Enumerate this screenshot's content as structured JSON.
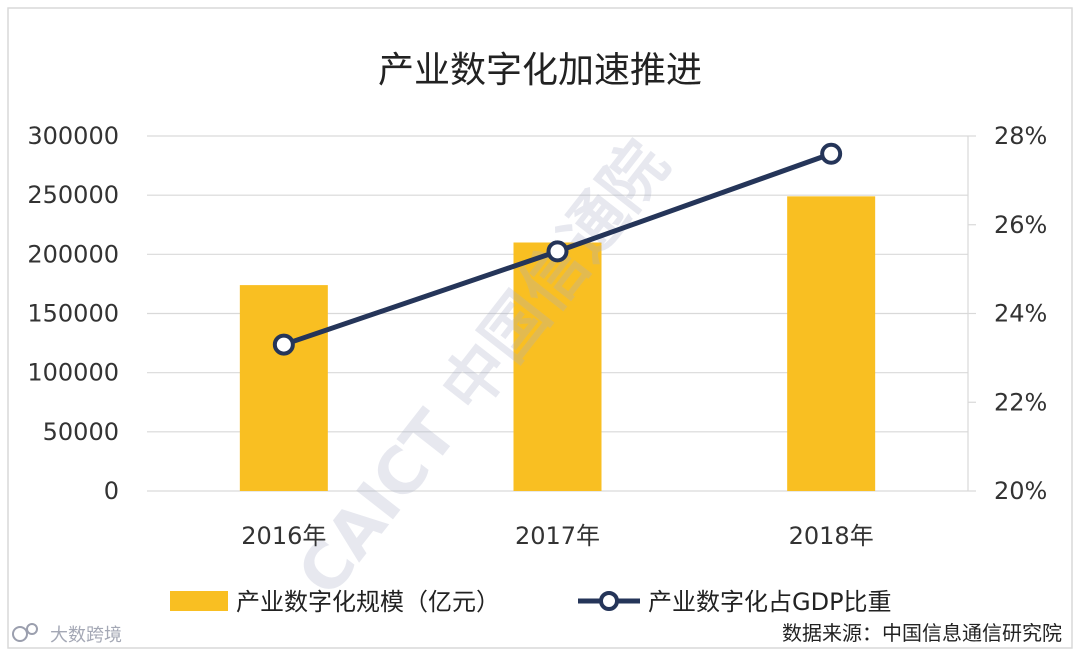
{
  "chart_data": {
    "type": "bar",
    "title": "产业数字化加速推进",
    "categories": [
      "2016年",
      "2017年",
      "2018年"
    ],
    "series": [
      {
        "name": "产业数字化规模（亿元）",
        "type": "bar",
        "axis": "left",
        "values": [
          174000,
          210000,
          249000
        ]
      },
      {
        "name": "产业数字化占GDP比重",
        "type": "line",
        "axis": "right",
        "values": [
          23.3,
          25.4,
          27.6
        ]
      }
    ],
    "y_left": {
      "range": [
        0,
        300000
      ],
      "ticks": [
        "0",
        "50000",
        "100000",
        "150000",
        "200000",
        "250000",
        "300000"
      ]
    },
    "y_right": {
      "range": [
        20,
        28
      ],
      "ticks": [
        "20%",
        "22%",
        "24%",
        "26%",
        "28%"
      ]
    },
    "grid": true,
    "legend_position": "bottom",
    "colors": {
      "bar": "#F9BF22",
      "line": "#253559",
      "grid": "#d9d9d9"
    }
  },
  "watermark": {
    "text": "CAICT 中国信通院"
  },
  "source_note": "数据来源：中国信息通信研究院",
  "corner_mark": "大数跨境"
}
